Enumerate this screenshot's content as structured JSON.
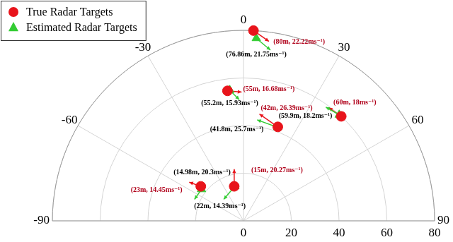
{
  "chart_data": {
    "type": "polar_scatter",
    "thetalim": [
      -90,
      90
    ],
    "thetaticks": [
      -90,
      -60,
      -30,
      0,
      30,
      60,
      90
    ],
    "rlim": [
      0,
      80
    ],
    "rticks": [
      0,
      20,
      40,
      60,
      80
    ],
    "grid": true,
    "legend": "upper left",
    "series": [
      {
        "name": "True Radar Targets",
        "color": "#e8141b",
        "marker": "circle",
        "theta": [
          3,
          -7,
          43,
          20,
          -15,
          -51
        ],
        "r": [
          80,
          55,
          60,
          42,
          15,
          23
        ],
        "speed": [
          22.22,
          16.68,
          18,
          26.39,
          20.27,
          14.45
        ],
        "heading": [
          125,
          95,
          305,
          305,
          0,
          290
        ],
        "value_labels": [
          "(80m, 22.22ms⁻¹)",
          "(55m, 16.68ms⁻¹)",
          "(60m, 18ms⁻¹)",
          "(42m, 26.39ms⁻¹)",
          "(15m, 20.27ms⁻¹)",
          "(23m, 14.45ms⁻¹)"
        ]
      },
      {
        "name": "Estimated Radar Targets",
        "color": "#33cc33",
        "marker": "triangle",
        "theta": [
          4,
          -6,
          42,
          20,
          -14,
          -53
        ],
        "r": [
          76.86,
          55.2,
          59.9,
          41.8,
          14.98,
          22
        ],
        "speed": [
          21.75,
          15.93,
          18.2,
          25.7,
          20.3,
          14.39
        ],
        "heading": [
          130,
          135,
          300,
          290,
          220,
          215
        ],
        "value_labels": [
          "(76.86m, 21.75ms⁻¹)",
          "(55.2m, 15.93ms⁻¹)",
          "(59.9m, 18.2ms⁻¹)",
          "(41.8m, 25.7ms⁻¹)",
          "(14.98m, 20.3ms⁻¹)",
          "(22m, 14.39ms⁻¹)"
        ]
      }
    ]
  }
}
